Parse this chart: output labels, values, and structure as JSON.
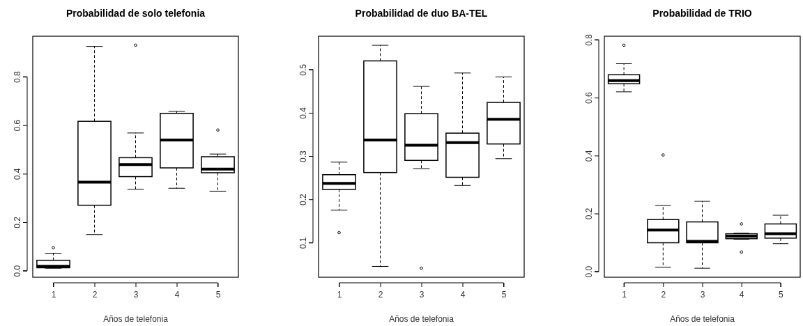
{
  "chart_data": [
    {
      "type": "box",
      "title": "Probabilidad de solo telefonia",
      "xlabel": "Años de telefonia",
      "categories": [
        "1",
        "2",
        "3",
        "4",
        "5"
      ],
      "ylim": [
        -0.027,
        0.967
      ],
      "yticks": [
        {
          "value": 0,
          "label": "0.0"
        },
        0.2,
        0.4,
        0.6,
        0.8
      ],
      "grid": false,
      "boxes": [
        {
          "low": 0.01,
          "q1": 0.012,
          "median": 0.018,
          "q3": 0.043,
          "high": 0.072,
          "outliers": [
            0.095
          ]
        },
        {
          "low": 0.149,
          "q1": 0.27,
          "median": 0.365,
          "q3": 0.616,
          "high": 0.925
        },
        {
          "low": 0.336,
          "q1": 0.388,
          "median": 0.438,
          "q3": 0.466,
          "high": 0.568,
          "outliers": [
            0.93
          ]
        },
        {
          "low": 0.34,
          "q1": 0.424,
          "median": 0.539,
          "q3": 0.649,
          "high": 0.657
        },
        {
          "low": 0.328,
          "q1": 0.404,
          "median": 0.419,
          "q3": 0.47,
          "high": 0.481,
          "outliers": [
            0.58
          ]
        }
      ]
    },
    {
      "type": "box",
      "title": "Probabilidad de duo BA-TEL",
      "xlabel": "Años de telefonia",
      "categories": [
        "1",
        "2",
        "3",
        "4",
        "5"
      ],
      "ylim": [
        0.02,
        0.577
      ],
      "yticks": [
        0.1,
        0.2,
        0.3,
        0.4,
        0.5
      ],
      "grid": false,
      "boxes": [
        {
          "low": 0.175,
          "q1": 0.223,
          "median": 0.237,
          "q3": 0.257,
          "high": 0.286,
          "outliers": [
            0.123
          ]
        },
        {
          "low": 0.045,
          "q1": 0.262,
          "median": 0.337,
          "q3": 0.52,
          "high": 0.556
        },
        {
          "low": 0.271,
          "q1": 0.29,
          "median": 0.325,
          "q3": 0.398,
          "high": 0.461,
          "outliers": [
            0.041
          ]
        },
        {
          "low": 0.232,
          "q1": 0.251,
          "median": 0.331,
          "q3": 0.353,
          "high": 0.492
        },
        {
          "low": 0.294,
          "q1": 0.328,
          "median": 0.385,
          "q3": 0.424,
          "high": 0.483
        }
      ]
    },
    {
      "type": "box",
      "title": "Probabilidad de TRIO",
      "xlabel": "Años de telefonia",
      "categories": [
        "1",
        "2",
        "3",
        "4",
        "5"
      ],
      "ylim": [
        -0.02,
        0.812
      ],
      "yticks": [
        {
          "value": 0,
          "label": "0.0"
        },
        0.2,
        0.4,
        0.6,
        0.8
      ],
      "grid": false,
      "boxes": [
        {
          "low": 0.62,
          "q1": 0.648,
          "median": 0.659,
          "q3": 0.679,
          "high": 0.717,
          "outliers": [
            0.781
          ]
        },
        {
          "low": 0.015,
          "q1": 0.099,
          "median": 0.143,
          "q3": 0.179,
          "high": 0.228,
          "outliers": [
            0.402
          ]
        },
        {
          "low": 0.011,
          "q1": 0.099,
          "median": 0.104,
          "q3": 0.171,
          "high": 0.242
        },
        {
          "low": 0.111,
          "q1": 0.113,
          "median": 0.122,
          "q3": 0.13,
          "high": 0.132,
          "outliers": [
            0.164,
            0.067
          ]
        },
        {
          "low": 0.096,
          "q1": 0.115,
          "median": 0.13,
          "q3": 0.164,
          "high": 0.194
        }
      ]
    }
  ]
}
